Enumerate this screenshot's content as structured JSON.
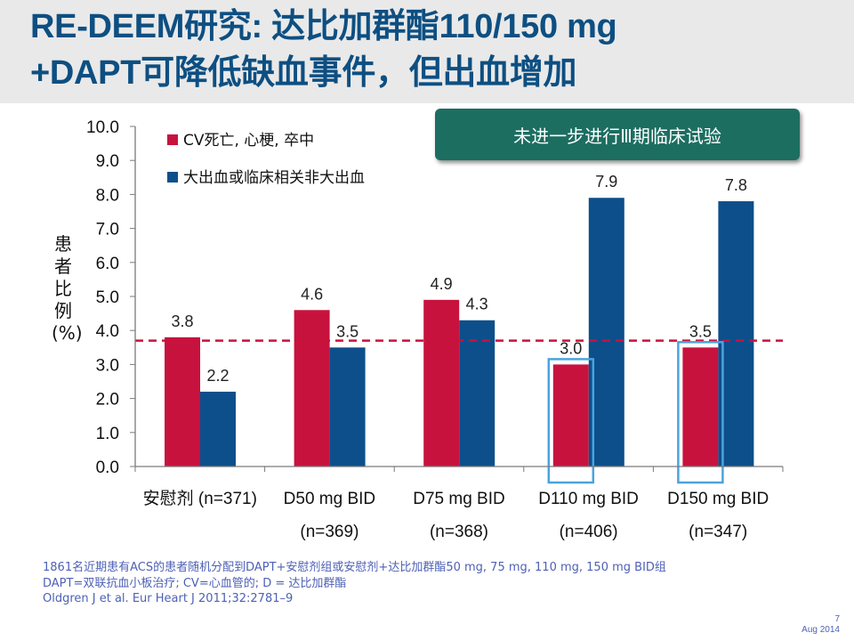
{
  "slide": {
    "title_line1": "RE-DEEM研究: 达比加群酯110/150 mg",
    "title_line2": "+DAPT可降低缺血事件，但出血增加",
    "callout": "未进一步进行Ⅲ期临床试验",
    "footnotes": [
      "1861名近期患有ACS的患者随机分配到DAPT+安慰剂组或安慰剂+达比加群酯50 mg, 75 mg, 110 mg, 150 mg BID组",
      "DAPT=双联抗血小板治疗; CV=心血管的; D = 达比加群酯",
      "Oldgren J et al. Eur Heart J 2011;32:2781–9"
    ],
    "page_number": "7",
    "date": "Aug 2014"
  },
  "chart_data": {
    "type": "bar",
    "ylabel": "患者比例(%)",
    "xlabel": "",
    "ylim": [
      0,
      10
    ],
    "yticks": [
      "0.0",
      "1.0",
      "2.0",
      "3.0",
      "4.0",
      "5.0",
      "6.0",
      "7.0",
      "8.0",
      "9.0",
      "10.0"
    ],
    "categories": [
      "安慰剂 (n=371)",
      "D50 mg BID",
      "D75 mg BID",
      "D110 mg BID",
      "D150 mg BID"
    ],
    "category_sublabels": [
      "",
      "(n=369)",
      "(n=368)",
      "(n=406)",
      "(n=347)"
    ],
    "series": [
      {
        "name": "CV死亡, 心梗, 卒中",
        "color": "#c8123e",
        "values": [
          3.8,
          4.6,
          4.9,
          3.0,
          3.5
        ],
        "labels": [
          "3.8",
          "4.6",
          "4.9",
          "3.0",
          "3.5"
        ]
      },
      {
        "name": "大出血或临床相关非大出血",
        "color": "#0d4f8b",
        "values": [
          2.2,
          3.5,
          4.3,
          7.9,
          7.8
        ],
        "labels": [
          "2.2",
          "3.5",
          "4.3",
          "7.9",
          "7.8"
        ]
      }
    ],
    "reference_line": {
      "value": 3.7,
      "style": "dashed",
      "color": "#c8123e"
    },
    "highlight_color": "#4aa3df",
    "highlighted_bars": [
      {
        "category": 3,
        "series": 0
      },
      {
        "category": 4,
        "series": 0
      }
    ],
    "grid": false,
    "legend_position": "top-left"
  }
}
